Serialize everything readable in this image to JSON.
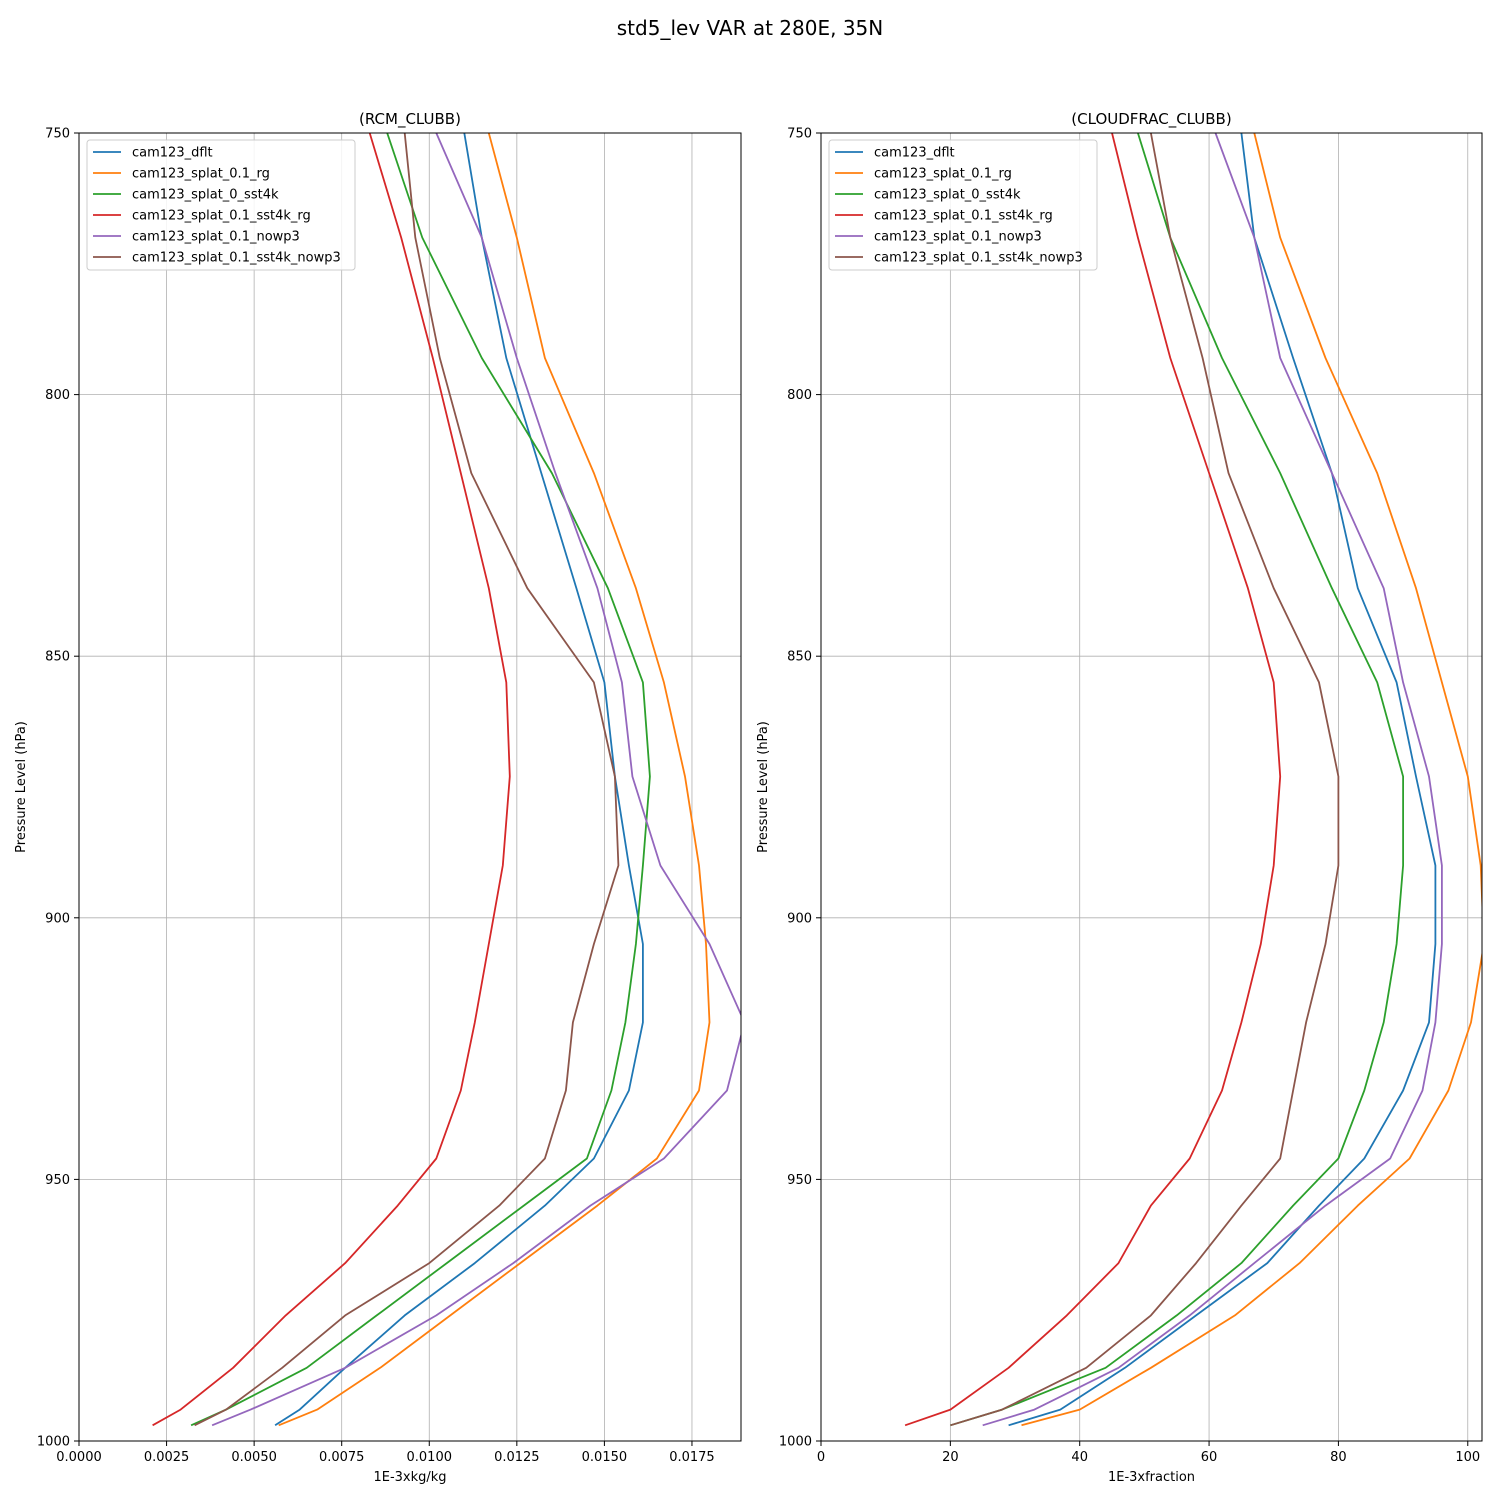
{
  "figure_title": "std5_lev VAR at 280E, 35N",
  "legend": [
    "cam123_dflt",
    "cam123_splat_0.1_rg",
    "cam123_splat_0_sst4k",
    "cam123_splat_0.1_sst4k_rg",
    "cam123_splat_0.1_nowp3",
    "cam123_splat_0.1_sst4k_nowp3"
  ],
  "colors": {
    "cam123_dflt": "#1f77b4",
    "cam123_splat_0.1_rg": "#ff7f0e",
    "cam123_splat_0_sst4k": "#2ca02c",
    "cam123_splat_0.1_sst4k_rg": "#d62728",
    "cam123_splat_0.1_nowp3": "#9467bd",
    "cam123_splat_0.1_sst4k_nowp3": "#8c564b"
  },
  "chart_data": [
    {
      "type": "line",
      "title": "(RCM_CLUBB)",
      "xlabel": "1E-3xkg/kg",
      "ylabel": "Pressure Level (hPa)",
      "xlim": [
        0,
        0.0189
      ],
      "ylim": [
        1000,
        750
      ],
      "y_inverted": true,
      "grid": true,
      "legend_position": "upper-left",
      "xticks": [
        0,
        0.0025,
        0.005,
        0.0075,
        0.01,
        0.0125,
        0.015,
        0.0175
      ],
      "xtick_labels": [
        "0.0000",
        "0.0025",
        "0.0050",
        "0.0075",
        "0.0100",
        "0.0125",
        "0.0150",
        "0.0175"
      ],
      "yticks": [
        750,
        800,
        850,
        900,
        950,
        1000
      ],
      "ytick_labels": [
        "750",
        "800",
        "850",
        "900",
        "950",
        "1000"
      ],
      "series": [
        {
          "name": "cam123_dflt",
          "x": [
            0.011,
            0.0115,
            0.0122,
            0.0132,
            0.0142,
            0.015,
            0.0153,
            0.0157,
            0.0161,
            0.0161,
            0.0157,
            0.0147,
            0.0133,
            0.0113,
            0.0093,
            0.0076,
            0.0063,
            0.0056
          ],
          "y": [
            750,
            770,
            793,
            815,
            837,
            855,
            873,
            890,
            905,
            920,
            933,
            946,
            955,
            966,
            976,
            986,
            994,
            997
          ]
        },
        {
          "name": "cam123_splat_0.1_rg",
          "x": [
            0.0117,
            0.0125,
            0.0133,
            0.0147,
            0.0159,
            0.0167,
            0.0173,
            0.0177,
            0.0179,
            0.018,
            0.0177,
            0.0165,
            0.0148,
            0.0126,
            0.0106,
            0.0086,
            0.0068,
            0.0057
          ],
          "y": [
            750,
            770,
            793,
            815,
            837,
            855,
            873,
            890,
            905,
            920,
            933,
            946,
            955,
            966,
            976,
            986,
            994,
            997
          ]
        },
        {
          "name": "cam123_splat_0_sst4k",
          "x": [
            0.0088,
            0.0098,
            0.0115,
            0.0135,
            0.0151,
            0.0161,
            0.0163,
            0.0161,
            0.0159,
            0.0156,
            0.0152,
            0.0145,
            0.0127,
            0.0105,
            0.0085,
            0.0065,
            0.0042,
            0.0032
          ],
          "y": [
            750,
            770,
            793,
            815,
            837,
            855,
            873,
            890,
            905,
            920,
            933,
            946,
            955,
            966,
            976,
            986,
            994,
            997
          ]
        },
        {
          "name": "cam123_splat_0.1_sst4k_rg",
          "x": [
            0.0083,
            0.0092,
            0.0101,
            0.0109,
            0.0117,
            0.0122,
            0.0123,
            0.0121,
            0.0117,
            0.0113,
            0.0109,
            0.0102,
            0.0091,
            0.0076,
            0.0059,
            0.0044,
            0.0029,
            0.0021
          ],
          "y": [
            750,
            770,
            793,
            815,
            837,
            855,
            873,
            890,
            905,
            920,
            933,
            946,
            955,
            966,
            976,
            986,
            994,
            997
          ]
        },
        {
          "name": "cam123_splat_0.1_nowp3",
          "x": [
            0.0102,
            0.0115,
            0.0125,
            0.0136,
            0.0148,
            0.0155,
            0.0158,
            0.0166,
            0.018,
            0.019,
            0.0185,
            0.0167,
            0.0146,
            0.0124,
            0.0102,
            0.0076,
            0.0049,
            0.0038
          ],
          "y": [
            750,
            770,
            793,
            815,
            837,
            855,
            873,
            890,
            905,
            920,
            933,
            946,
            955,
            966,
            976,
            986,
            994,
            997
          ]
        },
        {
          "name": "cam123_splat_0.1_sst4k_nowp3",
          "x": [
            0.0093,
            0.0096,
            0.0103,
            0.0112,
            0.0128,
            0.0147,
            0.0153,
            0.0154,
            0.0147,
            0.0141,
            0.0139,
            0.0133,
            0.012,
            0.01,
            0.0076,
            0.0058,
            0.0042,
            0.0033
          ],
          "y": [
            750,
            770,
            793,
            815,
            837,
            855,
            873,
            890,
            905,
            920,
            933,
            946,
            955,
            966,
            976,
            986,
            994,
            997
          ]
        }
      ]
    },
    {
      "type": "line",
      "title": "(CLOUDFRAC_CLUBB)",
      "xlabel": "1E-3xfraction",
      "ylabel": "Pressure Level (hPa)",
      "xlim": [
        0,
        102.2
      ],
      "ylim": [
        1000,
        750
      ],
      "y_inverted": true,
      "grid": true,
      "legend_position": "upper-left",
      "xticks": [
        0,
        20,
        40,
        60,
        80,
        100
      ],
      "xtick_labels": [
        "0",
        "20",
        "40",
        "60",
        "80",
        "100"
      ],
      "yticks": [
        750,
        800,
        850,
        900,
        950,
        1000
      ],
      "ytick_labels": [
        "750",
        "800",
        "850",
        "900",
        "950",
        "1000"
      ],
      "series": [
        {
          "name": "cam123_dflt",
          "x": [
            65,
            67,
            73,
            79,
            83,
            89,
            92,
            95,
            95,
            94,
            90,
            84,
            77,
            69,
            58,
            47,
            37,
            29
          ],
          "y": [
            750,
            770,
            793,
            815,
            837,
            855,
            873,
            890,
            905,
            920,
            933,
            946,
            955,
            966,
            976,
            986,
            994,
            997
          ]
        },
        {
          "name": "cam123_splat_0.1_rg",
          "x": [
            67,
            71,
            78,
            86,
            92,
            96,
            100,
            102,
            102.5,
            100.5,
            97,
            91,
            83,
            74,
            64,
            51,
            40,
            31
          ],
          "y": [
            750,
            770,
            793,
            815,
            837,
            855,
            873,
            890,
            905,
            920,
            933,
            946,
            955,
            966,
            976,
            986,
            994,
            997
          ]
        },
        {
          "name": "cam123_splat_0_sst4k",
          "x": [
            49,
            54,
            62,
            71,
            79,
            86,
            90,
            90,
            89,
            87,
            84,
            80,
            73,
            65,
            55,
            44,
            28,
            20
          ],
          "y": [
            750,
            770,
            793,
            815,
            837,
            855,
            873,
            890,
            905,
            920,
            933,
            946,
            955,
            966,
            976,
            986,
            994,
            997
          ]
        },
        {
          "name": "cam123_splat_0.1_sst4k_rg",
          "x": [
            45,
            49,
            54,
            60,
            66,
            70,
            71,
            70,
            68,
            65,
            62,
            57,
            51,
            46,
            38,
            29,
            20,
            13
          ],
          "y": [
            750,
            770,
            793,
            815,
            837,
            855,
            873,
            890,
            905,
            920,
            933,
            946,
            955,
            966,
            976,
            986,
            994,
            997
          ]
        },
        {
          "name": "cam123_splat_0.1_nowp3",
          "x": [
            61,
            67,
            71,
            79,
            87,
            90,
            94,
            96,
            96,
            95,
            93,
            88,
            78,
            67,
            57,
            46,
            33,
            25
          ],
          "y": [
            750,
            770,
            793,
            815,
            837,
            855,
            873,
            890,
            905,
            920,
            933,
            946,
            955,
            966,
            976,
            986,
            994,
            997
          ]
        },
        {
          "name": "cam123_splat_0.1_sst4k_nowp3",
          "x": [
            51,
            54,
            59,
            63,
            70,
            77,
            80,
            80,
            78,
            75,
            73,
            71,
            65,
            58,
            51,
            41,
            28,
            20
          ],
          "y": [
            750,
            770,
            793,
            815,
            837,
            855,
            873,
            890,
            905,
            920,
            933,
            946,
            955,
            966,
            976,
            986,
            994,
            997
          ]
        }
      ]
    }
  ]
}
